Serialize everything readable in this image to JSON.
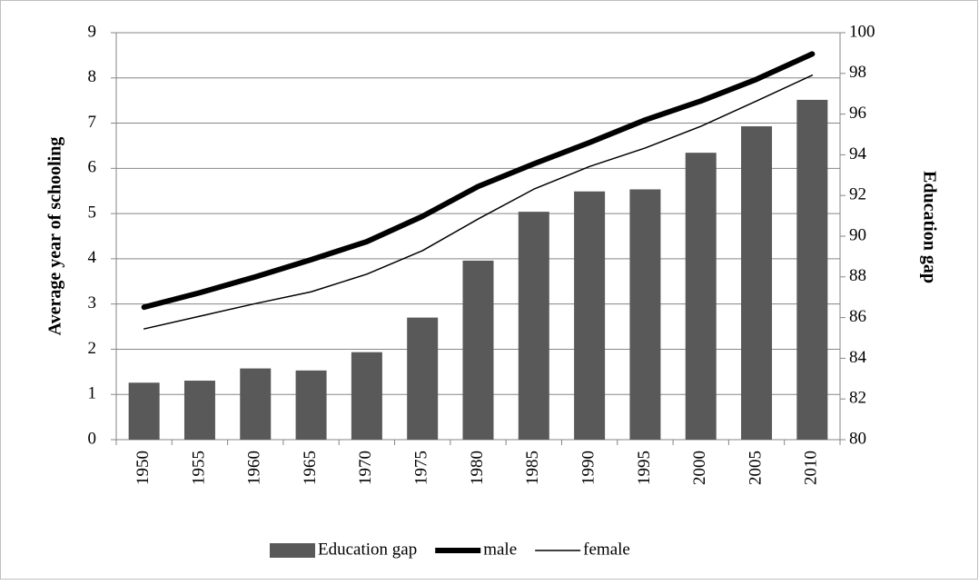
{
  "chart_data": {
    "type": "bar-line",
    "y_label": "Average year of schooling",
    "y2_label": "Education gap",
    "categories": [
      "1950",
      "1955",
      "1960",
      "1965",
      "1970",
      "1975",
      "1980",
      "1985",
      "1990",
      "1995",
      "2000",
      "2005",
      "2010"
    ],
    "series": [
      {
        "name": "Education gap",
        "type": "bar",
        "axis": "y2",
        "color": "#595959",
        "values": [
          82.8,
          82.9,
          83.5,
          83.4,
          84.3,
          86.0,
          88.8,
          91.2,
          92.2,
          92.3,
          94.1,
          95.4,
          96.7
        ]
      },
      {
        "name": "male",
        "type": "line",
        "color": "#000000",
        "line_width": 6,
        "values": [
          2.93,
          3.25,
          3.6,
          3.98,
          4.38,
          4.94,
          5.6,
          6.1,
          6.57,
          7.07,
          7.49,
          7.97,
          8.53
        ]
      },
      {
        "name": "female",
        "type": "line",
        "color": "#000000",
        "line_width": 1.5,
        "values": [
          2.45,
          2.73,
          3.01,
          3.27,
          3.66,
          4.18,
          4.88,
          5.54,
          6.04,
          6.45,
          6.93,
          7.49,
          8.06
        ]
      }
    ],
    "ylim": [
      0,
      9
    ],
    "yticks": [
      0,
      1,
      2,
      3,
      4,
      5,
      6,
      7,
      8,
      9
    ],
    "y2lim": [
      80,
      100
    ],
    "y2ticks": [
      80,
      82,
      84,
      86,
      88,
      90,
      92,
      94,
      96,
      98,
      100
    ],
    "grid": true,
    "legend": "bottom"
  }
}
